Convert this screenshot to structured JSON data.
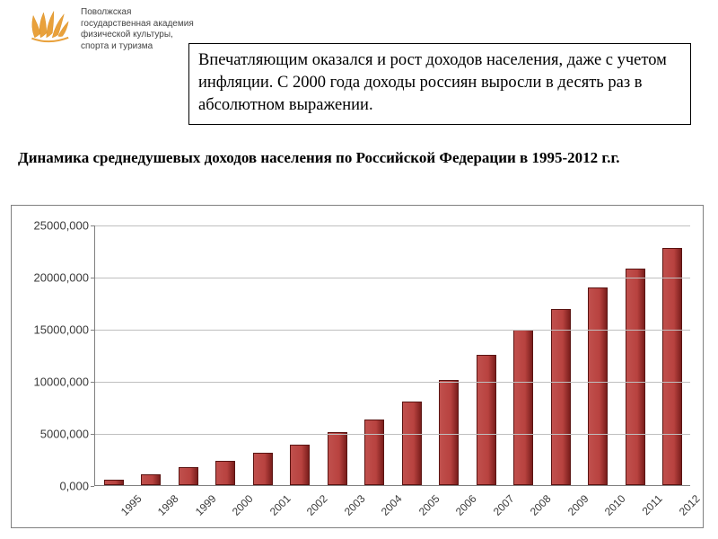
{
  "org": {
    "line1": "Поволжская",
    "line2": "государственная академия",
    "line3": "физической культуры,",
    "line4": "спорта и туризма"
  },
  "info_box_text": "Впечатляющим оказался и рост доходов населения, даже с учетом инфляции. С 2000 года доходы россиян выросли в десять раз в абсолютном выражении.",
  "caption_text": "Динамика среднедушевых доходов населения по Российской Федерации в 1995-2012 г.г.",
  "chart": {
    "type": "bar",
    "ylim": [
      0,
      25000000
    ],
    "ytick_step": 5000000,
    "ytick_format": "comma-us",
    "y_labels": [
      "0,000",
      "5000,000",
      "10000,000",
      "15000,000",
      "20000,000",
      "25000,000"
    ],
    "grid_color": "#bfbfbf",
    "axis_color": "#808080",
    "background_color": "#ffffff",
    "bar_color": "#c0504d",
    "bar_edge_color": "#5a1412",
    "bar_width_ratio": 0.52,
    "categories": [
      "1995",
      "1998",
      "1999",
      "2000",
      "2001",
      "2002",
      "2003",
      "2004",
      "2005",
      "2006",
      "2007",
      "2008",
      "2009",
      "2010",
      "2011",
      "2012"
    ],
    "values": [
      500000,
      1000000,
      1700000,
      2300000,
      3100000,
      3900000,
      5100000,
      6300000,
      8000000,
      10100000,
      12500000,
      14900000,
      16900000,
      19000000,
      20800000,
      22800000
    ],
    "xlabel_rotation": -45,
    "tick_fontsize": 13,
    "font_family": "Arial"
  }
}
